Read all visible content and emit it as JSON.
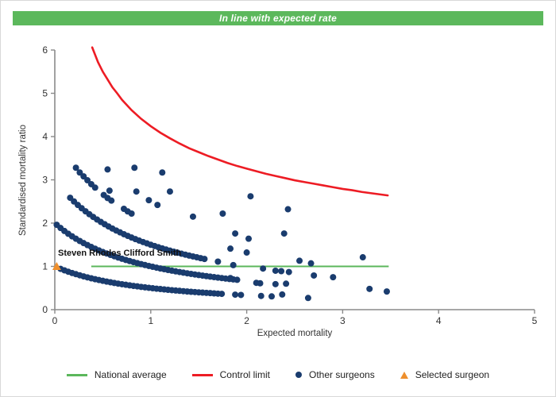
{
  "banner": {
    "text": "In line with expected rate",
    "bg": "#5cb85c"
  },
  "chart_data": {
    "type": "scatter",
    "xlabel": "Expected mortality",
    "ylabel": "Standardised mortality ratio",
    "xlim": [
      0,
      5
    ],
    "ylim": [
      0,
      6
    ],
    "x_ticks": [
      0,
      1,
      2,
      3,
      4,
      5
    ],
    "y_ticks": [
      0,
      1,
      2,
      3,
      4,
      5,
      6
    ],
    "grid": "off",
    "legend_position": "bottom",
    "axis_color": "#8a8a8a",
    "national_average": {
      "y": 1.0,
      "x_start": 0.38,
      "x_end": 3.48,
      "color": "#5bb75b"
    },
    "control_limit": {
      "color": "#ed1c24",
      "points": [
        [
          0.39,
          6.06
        ],
        [
          0.45,
          5.72
        ],
        [
          0.5,
          5.5
        ],
        [
          0.55,
          5.32
        ],
        [
          0.6,
          5.14
        ],
        [
          0.65,
          5.0
        ],
        [
          0.7,
          4.85
        ],
        [
          0.8,
          4.61
        ],
        [
          0.9,
          4.41
        ],
        [
          1.0,
          4.24
        ],
        [
          1.1,
          4.09
        ],
        [
          1.2,
          3.96
        ],
        [
          1.3,
          3.84
        ],
        [
          1.4,
          3.73
        ],
        [
          1.5,
          3.64
        ],
        [
          1.6,
          3.55
        ],
        [
          1.7,
          3.47
        ],
        [
          1.8,
          3.39
        ],
        [
          1.9,
          3.32
        ],
        [
          2.0,
          3.26
        ],
        [
          2.1,
          3.2
        ],
        [
          2.2,
          3.14
        ],
        [
          2.3,
          3.09
        ],
        [
          2.4,
          3.04
        ],
        [
          2.5,
          2.99
        ],
        [
          2.6,
          2.95
        ],
        [
          2.7,
          2.91
        ],
        [
          2.8,
          2.87
        ],
        [
          2.9,
          2.83
        ],
        [
          3.0,
          2.79
        ],
        [
          3.1,
          2.76
        ],
        [
          3.2,
          2.72
        ],
        [
          3.3,
          2.69
        ],
        [
          3.47,
          2.64
        ]
      ]
    },
    "selected_surgeon": {
      "label": "Steven Rhodes Clifford Smith",
      "x": 0.02,
      "y": 1.0,
      "color": "#ee8f2d"
    },
    "other_surgeons": {
      "color": "#1a3c6e",
      "points": [
        [
          0.06,
          0.943
        ],
        [
          0.1,
          0.909
        ],
        [
          0.14,
          0.877
        ],
        [
          0.18,
          0.847
        ],
        [
          0.22,
          0.82
        ],
        [
          0.26,
          0.794
        ],
        [
          0.3,
          0.769
        ],
        [
          0.34,
          0.746
        ],
        [
          0.38,
          0.725
        ],
        [
          0.42,
          0.704
        ],
        [
          0.46,
          0.685
        ],
        [
          0.5,
          0.667
        ],
        [
          0.54,
          0.649
        ],
        [
          0.58,
          0.633
        ],
        [
          0.62,
          0.617
        ],
        [
          0.66,
          0.602
        ],
        [
          0.7,
          0.588
        ],
        [
          0.74,
          0.575
        ],
        [
          0.78,
          0.562
        ],
        [
          0.82,
          0.549
        ],
        [
          0.86,
          0.538
        ],
        [
          0.9,
          0.526
        ],
        [
          0.94,
          0.515
        ],
        [
          0.98,
          0.505
        ],
        [
          1.02,
          0.495
        ],
        [
          1.06,
          0.485
        ],
        [
          1.1,
          0.476
        ],
        [
          1.14,
          0.467
        ],
        [
          1.18,
          0.459
        ],
        [
          1.22,
          0.45
        ],
        [
          1.26,
          0.442
        ],
        [
          1.3,
          0.435
        ],
        [
          1.34,
          0.427
        ],
        [
          1.38,
          0.42
        ],
        [
          1.42,
          0.413
        ],
        [
          1.46,
          0.407
        ],
        [
          1.5,
          0.4
        ],
        [
          1.54,
          0.394
        ],
        [
          1.58,
          0.388
        ],
        [
          1.62,
          0.382
        ],
        [
          1.66,
          0.376
        ],
        [
          1.7,
          0.37
        ],
        [
          1.74,
          0.365
        ],
        [
          1.88,
          0.347
        ],
        [
          1.94,
          0.34
        ],
        [
          2.15,
          0.317
        ],
        [
          2.26,
          0.307
        ],
        [
          2.37,
          0.35
        ],
        [
          2.64,
          0.27
        ],
        [
          0.02,
          1.961
        ],
        [
          0.06,
          1.887
        ],
        [
          0.1,
          1.818
        ],
        [
          0.14,
          1.754
        ],
        [
          0.18,
          1.695
        ],
        [
          0.22,
          1.639
        ],
        [
          0.26,
          1.587
        ],
        [
          0.3,
          1.538
        ],
        [
          0.34,
          1.493
        ],
        [
          0.38,
          1.449
        ],
        [
          0.42,
          1.408
        ],
        [
          0.46,
          1.37
        ],
        [
          0.5,
          1.333
        ],
        [
          0.54,
          1.299
        ],
        [
          0.58,
          1.266
        ],
        [
          0.62,
          1.235
        ],
        [
          0.66,
          1.205
        ],
        [
          0.7,
          1.176
        ],
        [
          0.74,
          1.149
        ],
        [
          0.78,
          1.124
        ],
        [
          0.82,
          1.099
        ],
        [
          0.86,
          1.075
        ],
        [
          0.9,
          1.053
        ],
        [
          0.94,
          1.031
        ],
        [
          0.98,
          1.01
        ],
        [
          1.02,
          0.99
        ],
        [
          1.06,
          0.971
        ],
        [
          1.1,
          0.952
        ],
        [
          1.14,
          0.935
        ],
        [
          1.18,
          0.917
        ],
        [
          1.22,
          0.901
        ],
        [
          1.26,
          0.885
        ],
        [
          1.3,
          0.87
        ],
        [
          1.34,
          0.855
        ],
        [
          1.38,
          0.84
        ],
        [
          1.42,
          0.826
        ],
        [
          1.46,
          0.813
        ],
        [
          1.5,
          0.8
        ],
        [
          1.54,
          0.787
        ],
        [
          1.58,
          0.775
        ],
        [
          1.62,
          0.763
        ],
        [
          1.66,
          0.752
        ],
        [
          1.7,
          0.741
        ],
        [
          1.74,
          0.73
        ],
        [
          1.78,
          0.719
        ],
        [
          1.82,
          0.709
        ],
        [
          1.86,
          0.699
        ],
        [
          1.9,
          0.69
        ],
        [
          2.1,
          0.62
        ],
        [
          2.14,
          0.61
        ],
        [
          2.3,
          0.59
        ],
        [
          2.41,
          0.6
        ],
        [
          3.28,
          0.48
        ],
        [
          3.46,
          0.42
        ],
        [
          0.16,
          2.586
        ],
        [
          0.2,
          2.5
        ],
        [
          0.24,
          2.419
        ],
        [
          0.28,
          2.344
        ],
        [
          0.32,
          2.273
        ],
        [
          0.36,
          2.206
        ],
        [
          0.4,
          2.143
        ],
        [
          0.44,
          2.083
        ],
        [
          0.48,
          2.027
        ],
        [
          0.52,
          1.974
        ],
        [
          0.56,
          1.923
        ],
        [
          0.6,
          1.875
        ],
        [
          0.64,
          1.829
        ],
        [
          0.68,
          1.786
        ],
        [
          0.72,
          1.744
        ],
        [
          0.76,
          1.705
        ],
        [
          0.8,
          1.667
        ],
        [
          0.84,
          1.63
        ],
        [
          0.88,
          1.596
        ],
        [
          0.92,
          1.563
        ],
        [
          0.96,
          1.531
        ],
        [
          1.0,
          1.5
        ],
        [
          1.04,
          1.471
        ],
        [
          1.08,
          1.442
        ],
        [
          1.12,
          1.415
        ],
        [
          1.16,
          1.389
        ],
        [
          1.2,
          1.364
        ],
        [
          1.24,
          1.339
        ],
        [
          1.28,
          1.316
        ],
        [
          1.32,
          1.293
        ],
        [
          1.36,
          1.271
        ],
        [
          1.4,
          1.25
        ],
        [
          1.44,
          1.23
        ],
        [
          1.48,
          1.21
        ],
        [
          1.52,
          1.19
        ],
        [
          1.56,
          1.172
        ],
        [
          1.7,
          1.11
        ],
        [
          1.86,
          1.03
        ],
        [
          2.17,
          0.95
        ],
        [
          2.3,
          0.9
        ],
        [
          2.36,
          0.89
        ],
        [
          2.44,
          0.87
        ],
        [
          2.7,
          0.79
        ],
        [
          2.9,
          0.75
        ],
        [
          0.22,
          3.28
        ],
        [
          0.26,
          3.17
        ],
        [
          0.3,
          3.08
        ],
        [
          0.34,
          2.99
        ],
        [
          0.38,
          2.9
        ],
        [
          0.42,
          2.82
        ],
        [
          0.51,
          2.65
        ],
        [
          0.55,
          2.58
        ],
        [
          0.59,
          2.52
        ],
        [
          0.72,
          2.33
        ],
        [
          0.76,
          2.27
        ],
        [
          0.8,
          2.22
        ],
        [
          1.83,
          1.41
        ],
        [
          2.0,
          1.32
        ],
        [
          2.55,
          1.13
        ],
        [
          2.67,
          1.07
        ],
        [
          0.55,
          3.24
        ],
        [
          0.83,
          3.28
        ],
        [
          1.12,
          3.17
        ],
        [
          0.57,
          2.75
        ],
        [
          0.85,
          2.73
        ],
        [
          1.2,
          2.73
        ],
        [
          0.98,
          2.53
        ],
        [
          1.07,
          2.42
        ],
        [
          1.44,
          2.15
        ],
        [
          1.75,
          2.22
        ],
        [
          2.04,
          2.62
        ],
        [
          2.43,
          2.32
        ],
        [
          1.88,
          1.76
        ],
        [
          2.02,
          1.64
        ],
        [
          2.39,
          1.76
        ],
        [
          3.21,
          1.21
        ],
        [
          1.83,
          0.73
        ]
      ]
    }
  },
  "legend": {
    "items": [
      {
        "label": "National average",
        "type": "line",
        "color": "#5bb75b"
      },
      {
        "label": "Control limit",
        "type": "line",
        "color": "#ed1c24"
      },
      {
        "label": "Other surgeons",
        "type": "dot",
        "color": "#1a3c6e"
      },
      {
        "label": "Selected surgeon",
        "type": "triangle",
        "color": "#ee8f2d"
      }
    ]
  }
}
